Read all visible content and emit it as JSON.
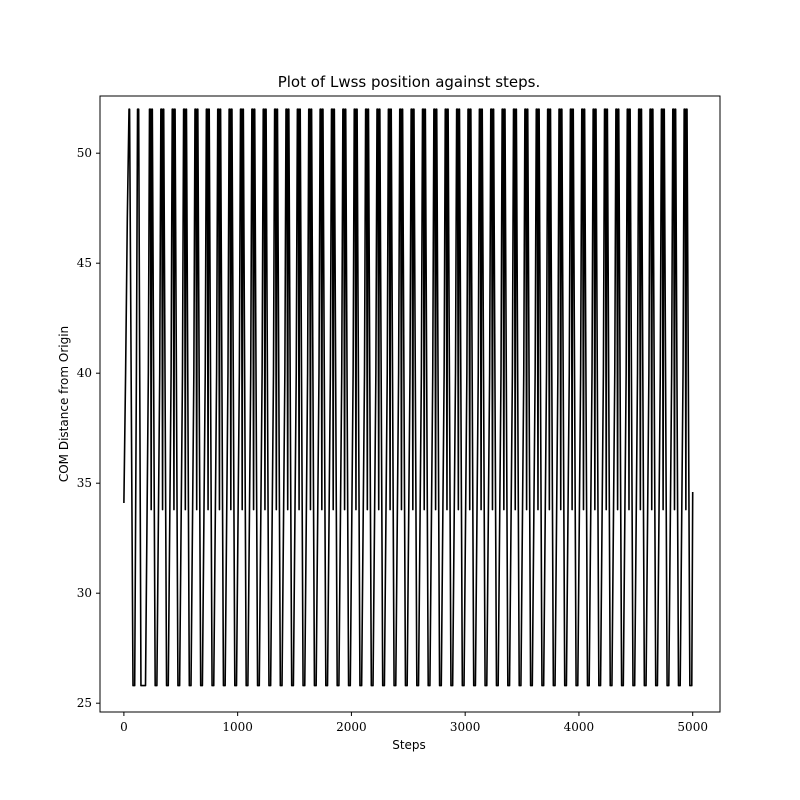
{
  "chart_data": {
    "type": "line",
    "title": "Plot of Lwss position against steps.",
    "xlabel": "Steps",
    "ylabel": "COM Distance from Origin",
    "xlim": [
      -210,
      5240
    ],
    "ylim": [
      24.6,
      52.6
    ],
    "x_ticks": [
      0,
      1000,
      2000,
      3000,
      4000,
      5000
    ],
    "y_ticks": [
      25,
      30,
      35,
      40,
      45,
      50
    ],
    "grid": false,
    "legend": "none",
    "color": "#000000",
    "series": [
      {
        "x": [
          0,
          15,
          30,
          45,
          50,
          80,
          95,
          110,
          120,
          130,
          150
        ],
        "y": [
          34.1,
          40.0,
          47.0,
          52.0,
          52.0,
          25.8,
          25.8,
          40.0,
          52.0,
          52.0,
          25.8
        ],
        "cycle": {
          "period": 100,
          "first_peak": 145,
          "last_peak": 4945,
          "peak_value": 52.0,
          "trough_value": 25.8,
          "end_x": 5000,
          "end_y": 34.6
        }
      }
    ]
  }
}
